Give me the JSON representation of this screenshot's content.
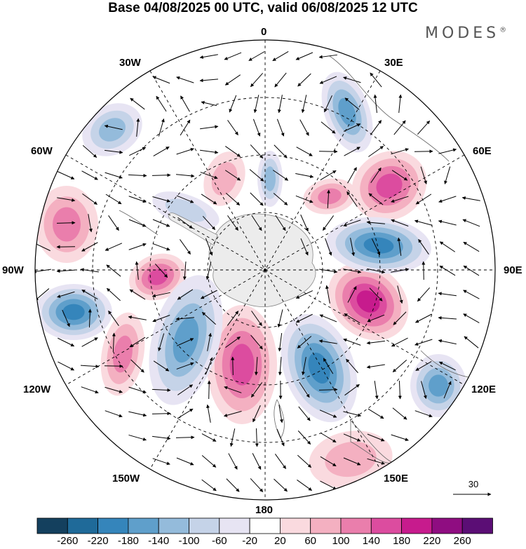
{
  "title": "Base 04/08/2025 00 UTC, valid 06/08/2025 12 UTC",
  "brand": "MODES",
  "brand_mark": "®",
  "longitude_labels": {
    "l0": "0",
    "l30e": "30E",
    "l60e": "60E",
    "l90e": "90E",
    "l120e": "120E",
    "l150e": "150E",
    "l180": "180",
    "l150w": "150W",
    "l120w": "120W",
    "l90w": "90W",
    "l60w": "60W",
    "l30w": "30W"
  },
  "vector_reference": {
    "label": "30"
  },
  "colorbar": {
    "ticks": [
      "-260",
      "-220",
      "-180",
      "-140",
      "-100",
      "-60",
      "-20",
      "20",
      "60",
      "100",
      "140",
      "180",
      "220",
      "260"
    ],
    "colors": [
      "#14405e",
      "#1f6a99",
      "#3585bb",
      "#5f9fcb",
      "#94bbdb",
      "#c5d3e8",
      "#e7e4f3",
      "#ffffff",
      "#fadadf",
      "#f4b0c1",
      "#ea7eac",
      "#dc4c9f",
      "#c71b8d",
      "#8f0d81",
      "#5b0e75"
    ]
  }
}
